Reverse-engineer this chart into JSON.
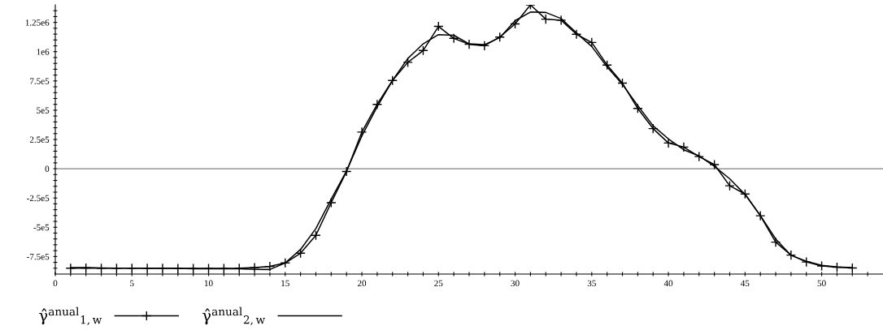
{
  "chart_data": {
    "type": "line",
    "x": [
      1,
      2,
      3,
      4,
      5,
      6,
      7,
      8,
      9,
      10,
      11,
      12,
      13,
      14,
      15,
      16,
      17,
      18,
      19,
      20,
      21,
      22,
      23,
      24,
      25,
      26,
      27,
      28,
      29,
      30,
      31,
      32,
      33,
      34,
      35,
      36,
      37,
      38,
      39,
      40,
      41,
      42,
      43,
      44,
      45,
      46,
      47,
      48,
      49,
      50,
      51,
      52
    ],
    "series": [
      {
        "name": "γ̂$^{anual}$$_{1,w}$",
        "color": "#000000",
        "marker": "cross",
        "values": [
          -850000,
          -848000,
          -850000,
          -850000,
          -850000,
          -850000,
          -850000,
          -852000,
          -852000,
          -852000,
          -852000,
          -850000,
          -845000,
          -835000,
          -805000,
          -722000,
          -569000,
          -290000,
          -24000,
          313000,
          550000,
          754000,
          909000,
          1010000,
          1216000,
          1114000,
          1063000,
          1051000,
          1125000,
          1237000,
          1400000,
          1278000,
          1269000,
          1149000,
          1079000,
          886000,
          731000,
          515000,
          343000,
          220000,
          185000,
          104000,
          35000,
          -146000,
          -216000,
          -402000,
          -627000,
          -738000,
          -797000,
          -831000,
          -841000,
          -848000
        ]
      },
      {
        "name": "γ̂$^{anual}$$_{2,w}$",
        "color": "#000000",
        "values": [
          -845000,
          -845000,
          -848000,
          -850000,
          -850000,
          -852000,
          -852000,
          -852000,
          -855000,
          -855000,
          -855000,
          -855000,
          -860000,
          -861000,
          -805000,
          -690000,
          -511000,
          -260000,
          -20000,
          280000,
          530000,
          754000,
          942000,
          1067000,
          1146000,
          1140000,
          1067000,
          1060000,
          1120000,
          1265000,
          1339000,
          1335000,
          1283000,
          1160000,
          1044000,
          870000,
          720000,
          540000,
          367000,
          255000,
          162000,
          110000,
          20000,
          -86000,
          -220000,
          -400000,
          -600000,
          -740000,
          -790000,
          -825000,
          -840000,
          -845000
        ]
      }
    ],
    "xlim": [
      0,
      54
    ],
    "xticks": [
      0,
      {
        "value": 1,
        "label": null
      },
      {
        "value": 2,
        "label": null
      },
      {
        "value": 3,
        "label": null
      },
      {
        "value": 4,
        "label": null
      },
      5,
      {
        "value": 6,
        "label": null
      },
      {
        "value": 7,
        "label": null
      },
      {
        "value": 8,
        "label": null
      },
      {
        "value": 9,
        "label": null
      },
      10,
      {
        "value": 11,
        "label": null
      },
      {
        "value": 12,
        "label": null
      },
      {
        "value": 13,
        "label": null
      },
      {
        "value": 14,
        "label": null
      },
      15,
      {
        "value": 16,
        "label": null
      },
      {
        "value": 17,
        "label": null
      },
      {
        "value": 18,
        "label": null
      },
      {
        "value": 19,
        "label": null
      },
      20,
      {
        "value": 21,
        "label": null
      },
      {
        "value": 22,
        "label": null
      },
      {
        "value": 23,
        "label": null
      },
      {
        "value": 24,
        "label": null
      },
      25,
      {
        "value": 26,
        "label": null
      },
      {
        "value": 27,
        "label": null
      },
      {
        "value": 28,
        "label": null
      },
      {
        "value": 29,
        "label": null
      },
      30,
      {
        "value": 31,
        "label": null
      },
      {
        "value": 32,
        "label": null
      },
      {
        "value": 33,
        "label": null
      },
      {
        "value": 34,
        "label": null
      },
      35,
      {
        "value": 36,
        "label": null
      },
      {
        "value": 37,
        "label": null
      },
      {
        "value": 38,
        "label": null
      },
      {
        "value": 39,
        "label": null
      },
      40,
      {
        "value": 41,
        "label": null
      },
      {
        "value": 42,
        "label": null
      },
      {
        "value": 43,
        "label": null
      },
      {
        "value": 44,
        "label": null
      },
      45,
      {
        "value": 46,
        "label": null
      },
      {
        "value": 47,
        "label": null
      },
      {
        "value": 48,
        "label": null
      },
      {
        "value": 49,
        "label": null
      },
      50,
      {
        "value": 51,
        "label": null
      },
      {
        "value": 52,
        "label": null
      },
      {
        "value": 53,
        "label": null
      }
    ],
    "ylim": [
      -900000,
      1400000
    ],
    "yticks": [
      {
        "value": -850000,
        "label": null
      },
      {
        "value": -800000,
        "label": null
      },
      {
        "value": -750000,
        "label": "-7.5e5"
      },
      {
        "value": -700000,
        "label": null
      },
      {
        "value": -650000,
        "label": null
      },
      {
        "value": -600000,
        "label": null
      },
      {
        "value": -550000,
        "label": null
      },
      {
        "value": -500000,
        "label": "-5e5"
      },
      {
        "value": -450000,
        "label": null
      },
      {
        "value": -400000,
        "label": null
      },
      {
        "value": -350000,
        "label": null
      },
      {
        "value": -300000,
        "label": null
      },
      {
        "value": -250000,
        "label": "-2.5e5"
      },
      {
        "value": -200000,
        "label": null
      },
      {
        "value": -150000,
        "label": null
      },
      {
        "value": -100000,
        "label": null
      },
      {
        "value": -50000,
        "label": null
      },
      0,
      {
        "value": 50000,
        "label": null
      },
      {
        "value": 100000,
        "label": null
      },
      {
        "value": 150000,
        "label": null
      },
      {
        "value": 200000,
        "label": null
      },
      {
        "value": 250000,
        "label": "2.5e5"
      },
      {
        "value": 300000,
        "label": null
      },
      {
        "value": 350000,
        "label": null
      },
      {
        "value": 400000,
        "label": null
      },
      {
        "value": 450000,
        "label": null
      },
      {
        "value": 500000,
        "label": "5e5"
      },
      {
        "value": 550000,
        "label": null
      },
      {
        "value": 600000,
        "label": null
      },
      {
        "value": 650000,
        "label": null
      },
      {
        "value": 700000,
        "label": null
      },
      {
        "value": 750000,
        "label": "7.5e5"
      },
      {
        "value": 800000,
        "label": null
      },
      {
        "value": 850000,
        "label": null
      },
      {
        "value": 900000,
        "label": null
      },
      {
        "value": 950000,
        "label": null
      },
      {
        "value": 1000000,
        "label": "1e6"
      },
      {
        "value": 1050000,
        "label": null
      },
      {
        "value": 1100000,
        "label": null
      },
      {
        "value": 1150000,
        "label": null
      },
      {
        "value": 1200000,
        "label": null
      },
      {
        "value": 1250000,
        "label": "1.25e6"
      },
      {
        "value": 1300000,
        "label": null
      },
      {
        "value": 1350000,
        "label": null
      }
    ],
    "ref_lines": [
      {
        "axis": "y",
        "value": 0,
        "color": "#808080"
      }
    ],
    "grid": false,
    "legend": "bottom left",
    "line_style": "solid"
  }
}
